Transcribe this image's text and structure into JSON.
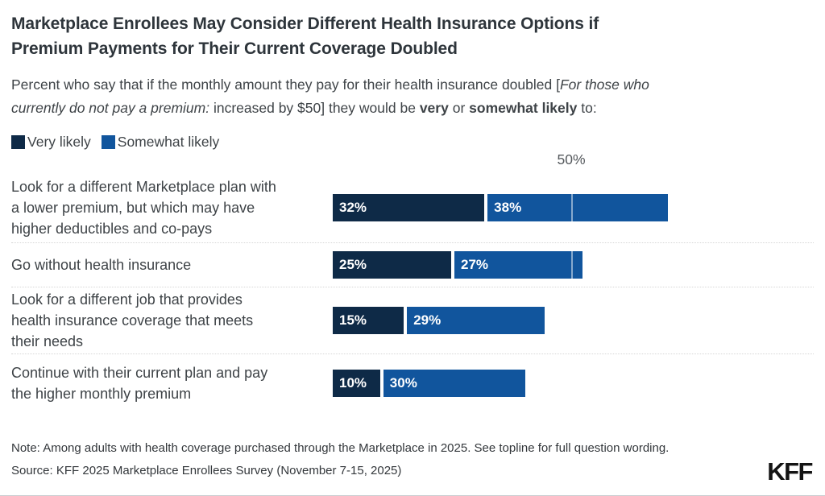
{
  "header": {
    "title_lines": [
      "Marketplace Enrollees May Consider Different Health Insurance Options if",
      "Premium Payments for Their Current Coverage Doubled"
    ],
    "subtitle_segments": [
      {
        "text": "Percent who say that if the monthly amount they pay for their health insurance doubled [",
        "style": ""
      },
      {
        "text": "For those who\ncurrently do not pay a premium:",
        "style": "i"
      },
      {
        "text": " increased by $50] they would be ",
        "style": ""
      },
      {
        "text": "very",
        "style": "b"
      },
      {
        "text": " or ",
        "style": ""
      },
      {
        "text": "somewhat likely",
        "style": "b"
      },
      {
        "text": " to:",
        "style": ""
      }
    ]
  },
  "legend": {
    "items": [
      {
        "label": "Very likely",
        "color": "#0E2A47"
      },
      {
        "label": "Somewhat likely",
        "color": "#11559D"
      }
    ]
  },
  "chart_data": {
    "type": "bar",
    "orientation": "horizontal",
    "stacked": true,
    "title": "Marketplace Enrollees May Consider Different Health Insurance Options if Premium Payments for Their Current Coverage Doubled",
    "categories": [
      "Look for a different Marketplace plan with\na lower premium, but which may have\nhigher deductibles and co-pays",
      "Go without health insurance",
      "Look for a different job that provides\nhealth insurance coverage that meets\ntheir needs",
      "Continue with their current plan and pay\nthe higher monthly premium"
    ],
    "series": [
      {
        "name": "Very likely",
        "color": "#0E2A47",
        "values": [
          32,
          25,
          15,
          10
        ]
      },
      {
        "name": "Somewhat likely",
        "color": "#11559D",
        "values": [
          38,
          27,
          29,
          30
        ]
      }
    ],
    "totals": [
      70,
      52,
      44,
      40
    ],
    "value_suffix": "%",
    "axis": {
      "xlim": [
        0,
        100
      ],
      "gridline_value": 50,
      "gridline_label": "50%",
      "grid": "single-line-over-bars"
    },
    "legend_position": "top-left"
  },
  "footer": {
    "note": "Note: Among adults with health coverage purchased through the Marketplace in 2025. See topline for full question wording.",
    "source": "Source: KFF 2025 Marketplace Enrollees Survey (November 7-15, 2025)",
    "logo": "KFF"
  }
}
